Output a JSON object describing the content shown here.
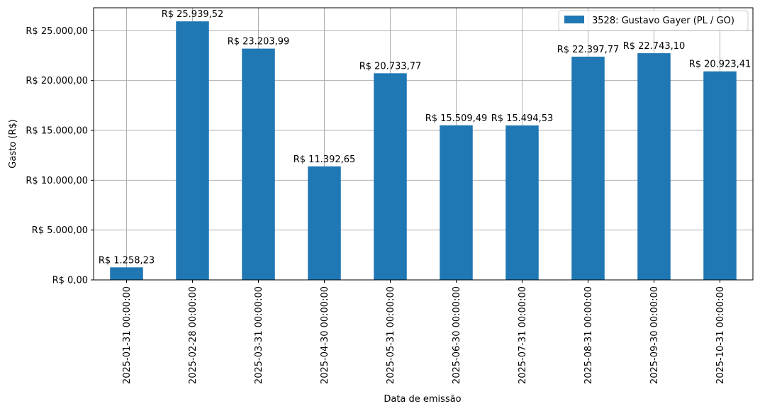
{
  "chart_data": {
    "type": "bar",
    "categories": [
      "2025-01-31 00:00:00",
      "2025-02-28 00:00:00",
      "2025-03-31 00:00:00",
      "2025-04-30 00:00:00",
      "2025-05-31 00:00:00",
      "2025-06-30 00:00:00",
      "2025-07-31 00:00:00",
      "2025-08-31 00:00:00",
      "2025-09-30 00:00:00",
      "2025-10-31 00:00:00"
    ],
    "series": [
      {
        "name": "3528: Gustavo Gayer (PL / GO)",
        "values": [
          1258.23,
          25939.52,
          23203.99,
          11392.65,
          20733.77,
          15509.49,
          15494.53,
          22397.77,
          22743.1,
          20923.41
        ],
        "data_labels": [
          "R$ 1.258,23",
          "R$ 25.939,52",
          "R$ 23.203,99",
          "R$ 11.392,65",
          "R$ 20.733,77",
          "R$ 15.509,49",
          "R$ 15.494,53",
          "R$ 22.397,77",
          "R$ 22.743,10",
          "R$ 20.923,41"
        ],
        "color": "#1f77b4"
      }
    ],
    "xlabel": "Data de emissão",
    "ylabel": "Gasto (R$)",
    "ylim": [
      0,
      27300
    ],
    "yticks": [
      0,
      5000,
      10000,
      15000,
      20000,
      25000
    ],
    "ytick_labels": [
      "R$ 0,00",
      "R$ 5.000,00",
      "R$ 10.000,00",
      "R$ 15.000,00",
      "R$ 20.000,00",
      "R$ 25.000,00"
    ],
    "grid": true,
    "legend_position": "top-right"
  }
}
